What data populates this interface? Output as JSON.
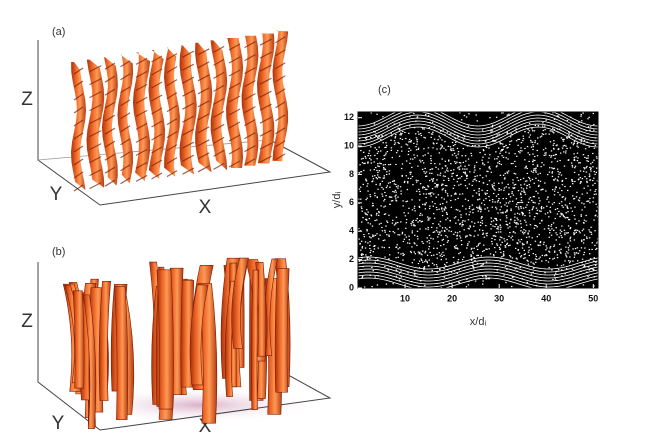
{
  "panels": [
    {
      "label": "(a)",
      "z_label": "Z",
      "y_label": "Y",
      "x_label": "X"
    },
    {
      "label": "(b)",
      "z_label": "Z",
      "y_label": "Y",
      "x_label": "X"
    },
    {
      "label": "(c)",
      "x_axis_label": "x/dᵢ",
      "y_axis_label": "y/dᵢ",
      "xlim": [
        0,
        51
      ],
      "ylim": [
        0,
        12.4
      ],
      "xticks": [
        10,
        20,
        30,
        40,
        50
      ],
      "yticks": [
        0,
        2,
        4,
        6,
        8,
        10,
        12
      ]
    }
  ]
}
